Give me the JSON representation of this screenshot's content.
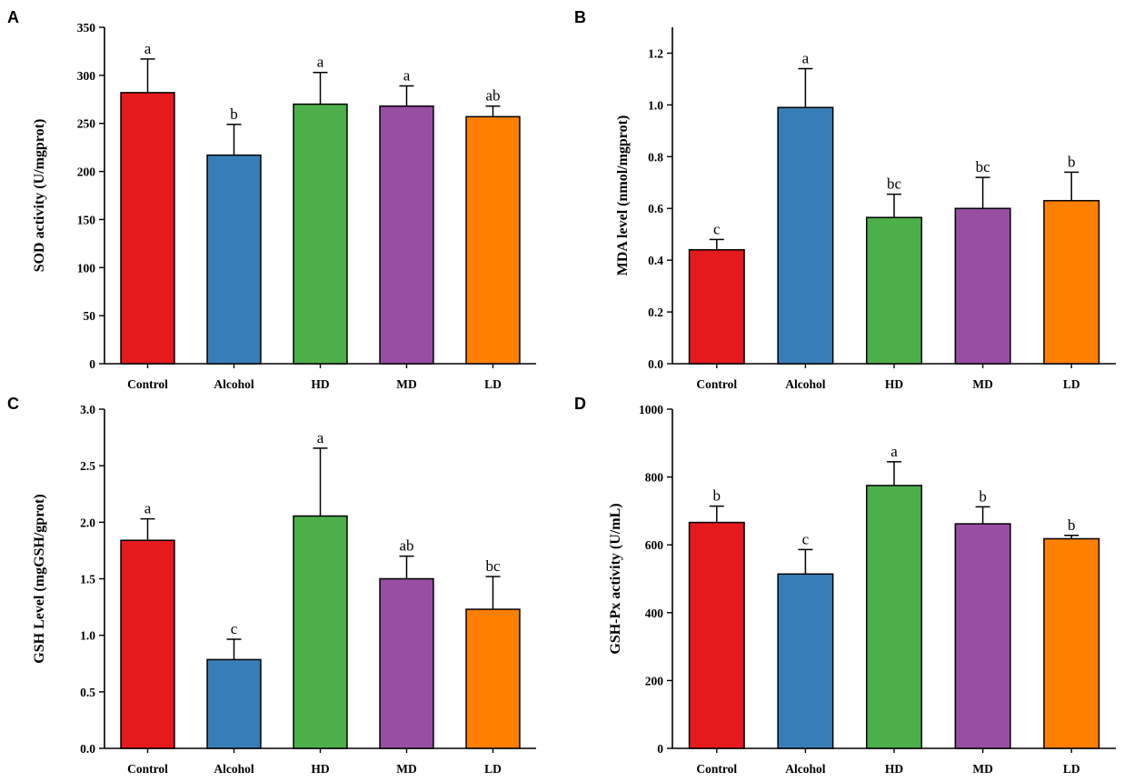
{
  "colors": {
    "Control": "#e41a1c",
    "Alcohol": "#377eb8",
    "HD": "#4daf4a",
    "MD": "#984ea3",
    "LD": "#ff7f00"
  },
  "chart_data": [
    {
      "type": "bar",
      "panel": "A",
      "categories": [
        "Control",
        "Alcohol",
        "HD",
        "MD",
        "LD"
      ],
      "values": [
        282,
        217,
        270,
        268,
        257
      ],
      "errors": [
        35,
        32,
        33,
        21,
        11
      ],
      "significance": [
        "a",
        "b",
        "a",
        "a",
        "ab"
      ],
      "ylabel": "SOD activity (U/mgprot)",
      "ylim": [
        0,
        350
      ],
      "yticks": [
        0,
        50,
        100,
        150,
        200,
        250,
        300,
        350
      ],
      "ytick_labels": [
        "0",
        "50",
        "100",
        "150",
        "200",
        "250",
        "300",
        "350"
      ]
    },
    {
      "type": "bar",
      "panel": "B",
      "categories": [
        "Control",
        "Alcohol",
        "HD",
        "MD",
        "LD"
      ],
      "values": [
        0.44,
        0.99,
        0.565,
        0.6,
        0.63
      ],
      "errors": [
        0.04,
        0.15,
        0.09,
        0.12,
        0.11
      ],
      "significance": [
        "c",
        "a",
        "bc",
        "bc",
        "b"
      ],
      "ylabel": "MDA level (nmol/mgprot)",
      "ylim": [
        0,
        1.3
      ],
      "yticks": [
        0,
        0.2,
        0.4,
        0.6,
        0.8,
        1.0,
        1.2
      ],
      "ytick_labels": [
        "0.0",
        "0.2",
        "0.4",
        "0.6",
        "0.8",
        "1.0",
        "1.2"
      ]
    },
    {
      "type": "bar",
      "panel": "C",
      "categories": [
        "Control",
        "Alcohol",
        "HD",
        "MD",
        "LD"
      ],
      "values": [
        1.84,
        0.785,
        2.055,
        1.5,
        1.23
      ],
      "errors": [
        0.19,
        0.18,
        0.6,
        0.2,
        0.29
      ],
      "significance": [
        "a",
        "c",
        "a",
        "ab",
        "bc"
      ],
      "ylabel": "GSH Level (mgGSH/gprot)",
      "ylim": [
        0,
        3.0
      ],
      "yticks": [
        0,
        0.5,
        1.0,
        1.5,
        2.0,
        2.5,
        3.0
      ],
      "ytick_labels": [
        "0.0",
        "0.5",
        "1.0",
        "1.5",
        "2.0",
        "2.5",
        "3.0"
      ]
    },
    {
      "type": "bar",
      "panel": "D",
      "categories": [
        "Control",
        "Alcohol",
        "HD",
        "MD",
        "LD"
      ],
      "values": [
        666,
        514,
        775,
        662,
        618
      ],
      "errors": [
        48,
        72,
        70,
        50,
        10
      ],
      "significance": [
        "b",
        "c",
        "a",
        "b",
        "b"
      ],
      "ylabel": "GSH-Px activity (U/mL)",
      "ylim": [
        0,
        1000
      ],
      "yticks": [
        0,
        200,
        400,
        600,
        800,
        1000
      ],
      "ytick_labels": [
        "0",
        "200",
        "400",
        "600",
        "800",
        "1000"
      ]
    }
  ]
}
